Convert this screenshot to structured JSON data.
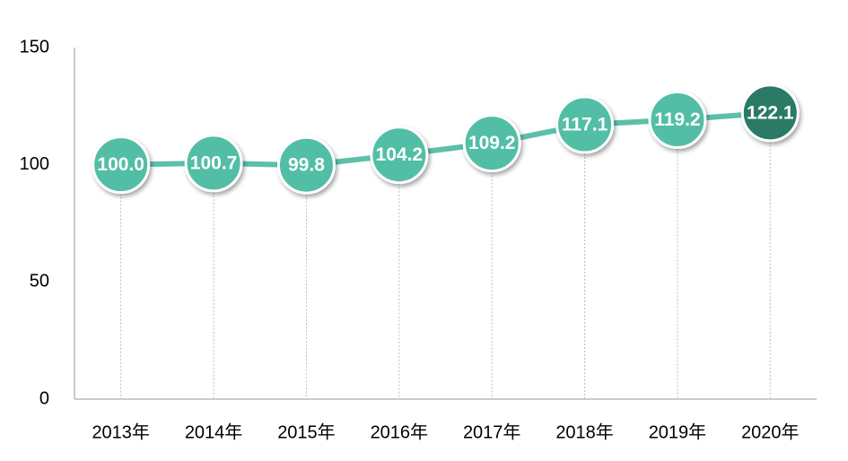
{
  "chart_data": {
    "type": "line",
    "categories": [
      "2013年",
      "2014年",
      "2015年",
      "2016年",
      "2017年",
      "2018年",
      "2019年",
      "2020年"
    ],
    "series": [
      {
        "color": "#5cc0a9",
        "values": [
          100.0,
          100.7,
          99.8,
          104.2,
          109.2,
          117.1,
          119.2,
          122.1
        ],
        "value_labels": [
          "100.0",
          "100.7",
          "99.8",
          "104.2",
          "109.2",
          "117.1",
          "119.2",
          "122.1"
        ],
        "marker_colors": [
          "#52bea6",
          "#52bea6",
          "#52bea6",
          "#52bea6",
          "#52bea6",
          "#52bea6",
          "#52bea6",
          "#2b7a65"
        ]
      }
    ],
    "ylim": [
      0,
      150
    ],
    "yticks": [
      0,
      50,
      100,
      150
    ],
    "drop_lines": true
  }
}
